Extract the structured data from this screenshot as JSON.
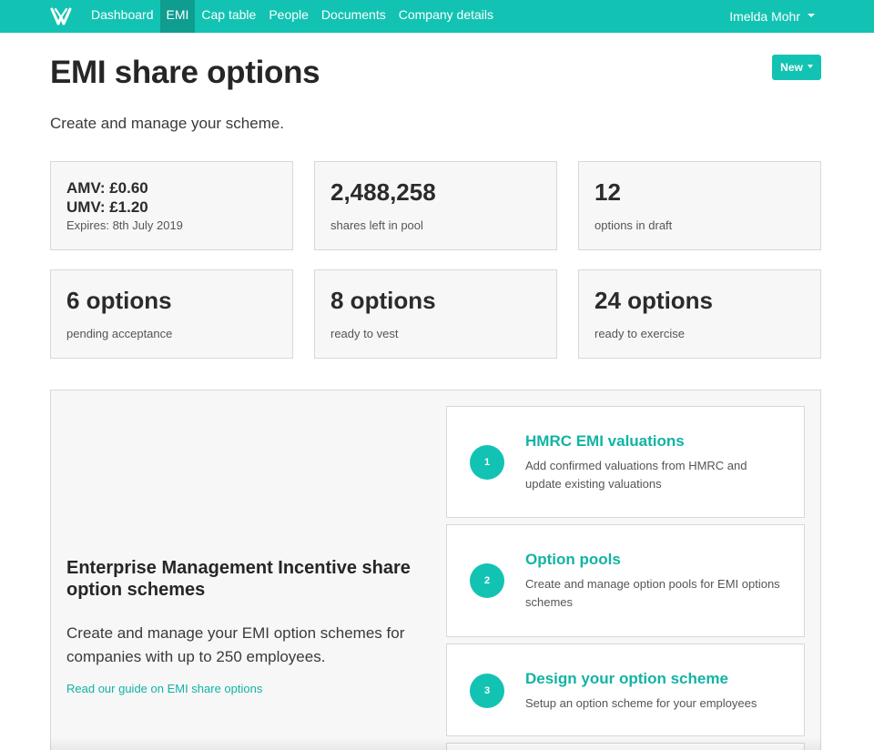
{
  "nav": {
    "items": [
      {
        "label": "Dashboard",
        "active": false
      },
      {
        "label": "EMI",
        "active": true
      },
      {
        "label": "Cap table",
        "active": false
      },
      {
        "label": "People",
        "active": false
      },
      {
        "label": "Documents",
        "active": false
      },
      {
        "label": "Company details",
        "active": false
      }
    ],
    "user": "Imelda Mohr"
  },
  "header": {
    "title": "EMI share options",
    "subtitle": "Create and manage your scheme.",
    "new_button": "New"
  },
  "valuation": {
    "amv": "AMV: £0.60",
    "umv": "UMV: £1.20",
    "expires": "Expires: 8th July 2019"
  },
  "stats": [
    {
      "value": "2,488,258",
      "label": "shares left in pool"
    },
    {
      "value": "12",
      "label": "options in draft"
    },
    {
      "value": "6 options",
      "label": "pending acceptance"
    },
    {
      "value": "8 options",
      "label": "ready to vest"
    },
    {
      "value": "24 options",
      "label": "ready to exercise"
    }
  ],
  "intro": {
    "title": "Enterprise Management Incentive share option schemes",
    "text": "Create and manage your EMI option schemes for companies with up to 250 employees.",
    "link": "Read our guide on EMI share options"
  },
  "steps": [
    {
      "num": "1",
      "title": "HMRC EMI valuations",
      "desc": "Add confirmed valuations from HMRC and update existing valuations"
    },
    {
      "num": "2",
      "title": "Option pools",
      "desc": "Create and manage option pools for EMI options schemes"
    },
    {
      "num": "3",
      "title": "Design your option scheme",
      "desc": "Setup an option scheme for your employees"
    }
  ],
  "colors": {
    "brand": "#12c3b3",
    "brand_dark": "#0f9d90",
    "link": "#12b3a4"
  }
}
